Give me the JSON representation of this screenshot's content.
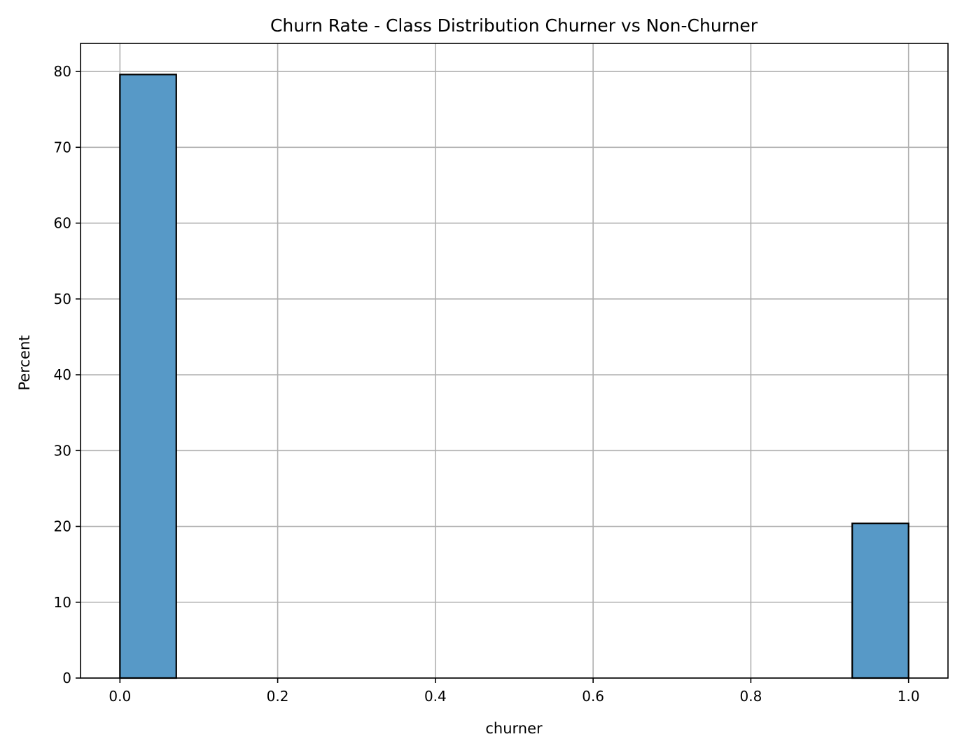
{
  "chart_data": {
    "type": "bar",
    "title": "Churn Rate - Class Distribution Churner vs Non-Churner",
    "xlabel": "churner",
    "ylabel": "Percent",
    "xlim": [
      -0.05,
      1.05
    ],
    "ylim": [
      0,
      83.7
    ],
    "grid": true,
    "bar_color": "#5799c7",
    "bins": [
      {
        "x0": 0.0,
        "x1": 0.07143,
        "value": 79.6
      },
      {
        "x0": 0.92857,
        "x1": 1.0,
        "value": 20.4
      }
    ],
    "x_ticks": [
      {
        "value": 0.0,
        "label": "0.0"
      },
      {
        "value": 0.2,
        "label": "0.2"
      },
      {
        "value": 0.4,
        "label": "0.4"
      },
      {
        "value": 0.6,
        "label": "0.6"
      },
      {
        "value": 0.8,
        "label": "0.8"
      },
      {
        "value": 1.0,
        "label": "1.0"
      }
    ],
    "y_ticks": [
      {
        "value": 0,
        "label": "0"
      },
      {
        "value": 10,
        "label": "10"
      },
      {
        "value": 20,
        "label": "20"
      },
      {
        "value": 30,
        "label": "30"
      },
      {
        "value": 40,
        "label": "40"
      },
      {
        "value": 50,
        "label": "50"
      },
      {
        "value": 60,
        "label": "60"
      },
      {
        "value": 70,
        "label": "70"
      },
      {
        "value": 80,
        "label": "80"
      }
    ]
  }
}
